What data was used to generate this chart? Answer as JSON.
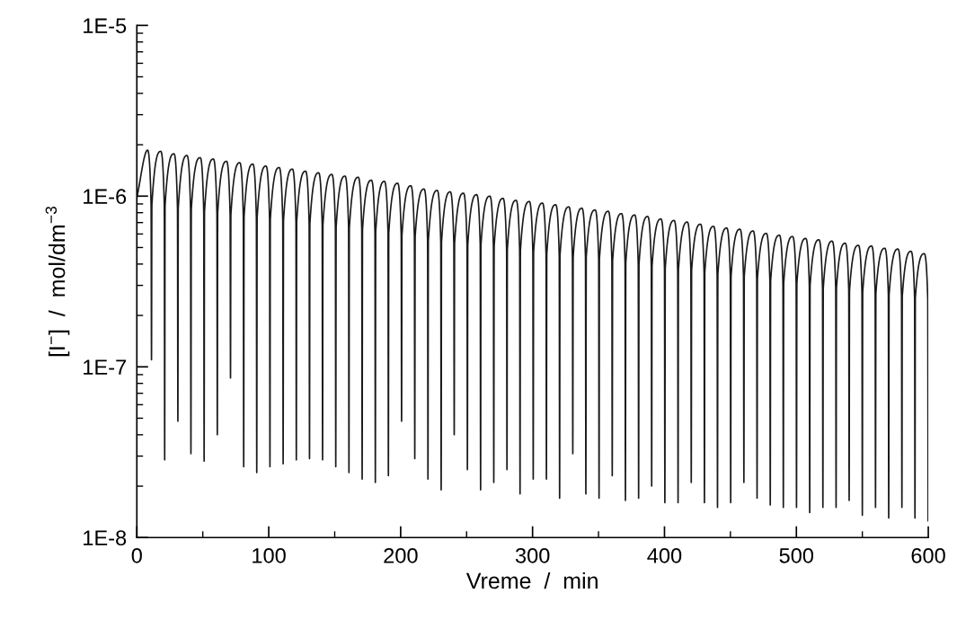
{
  "chart_data": {
    "type": "line",
    "xlabel": "Vreme  /  min",
    "ylabel": "[I$^{−}$]  /  mol/dm$^{−3}$",
    "log": "y",
    "grid": false,
    "marker": "none",
    "line_style": "solid",
    "xlim": [
      0,
      600
    ],
    "xticks": [
      0,
      100,
      200,
      300,
      400,
      500,
      600
    ],
    "ylim": [
      1e-08,
      1e-05
    ],
    "yticks": [
      {
        "value": 1e-08,
        "label": "1E-8"
      },
      {
        "value": 1e-07,
        "label": "1E-7"
      },
      {
        "value": 1e-06,
        "label": "1E-6"
      },
      {
        "value": 1e-05,
        "label": "1E-5"
      }
    ],
    "series": [
      {
        "color": "#1a1a1a",
        "x": [
          0,
          8.1,
          10.8,
          11.1,
          11.4,
          18.1,
          20.8,
          21.1,
          21.4,
          28.1,
          30.8,
          31.1,
          31.4,
          38.0,
          40.7,
          41.0,
          41.3,
          48.0,
          50.7,
          51.0,
          51.3,
          58.0,
          60.7,
          61.0,
          61.3,
          68.0,
          70.7,
          71.0,
          71.3,
          78.0,
          80.7,
          81.0,
          81.3,
          87.9,
          90.6,
          90.9,
          91.2,
          97.9,
          100.6,
          100.9,
          101.2,
          107.9,
          110.6,
          110.9,
          111.2,
          117.9,
          120.6,
          120.9,
          121.2,
          127.9,
          130.6,
          130.9,
          131.2,
          137.8,
          140.5,
          140.8,
          141.1,
          147.8,
          150.5,
          150.8,
          151.1,
          157.8,
          160.5,
          160.8,
          161.1,
          167.8,
          170.5,
          170.8,
          171.1,
          177.8,
          180.5,
          180.8,
          181.1,
          187.7,
          190.4,
          190.7,
          191.0,
          197.7,
          200.4,
          200.7,
          201.0,
          207.7,
          210.4,
          210.7,
          211.0,
          217.7,
          220.4,
          220.7,
          221.0,
          227.7,
          230.4,
          230.7,
          231.0,
          237.6,
          240.3,
          240.6,
          240.9,
          247.6,
          250.3,
          250.6,
          250.9,
          257.6,
          260.3,
          260.6,
          260.9,
          267.6,
          270.3,
          270.6,
          270.9,
          277.6,
          280.3,
          280.6,
          280.9,
          287.5,
          290.2,
          290.5,
          290.8,
          297.5,
          300.2,
          300.5,
          300.8,
          307.5,
          310.2,
          310.5,
          310.8,
          317.5,
          320.2,
          320.5,
          320.8,
          327.5,
          330.2,
          330.5,
          330.8,
          337.4,
          340.1,
          340.4,
          340.7,
          347.4,
          350.1,
          350.4,
          350.7,
          357.4,
          360.1,
          360.4,
          360.7,
          367.4,
          370.1,
          370.4,
          370.7,
          377.4,
          380.1,
          380.4,
          380.7,
          387.3,
          390.0,
          390.3,
          390.6,
          397.3,
          400.0,
          400.3,
          400.6,
          407.3,
          410.0,
          410.3,
          410.6,
          417.3,
          420.0,
          420.3,
          420.6,
          427.3,
          430.0,
          430.3,
          430.6,
          437.2,
          439.9,
          440.2,
          440.5,
          447.2,
          449.9,
          450.2,
          450.5,
          457.2,
          459.9,
          460.2,
          460.5,
          467.2,
          469.9,
          470.2,
          470.5,
          477.2,
          479.9,
          480.2,
          480.5,
          487.1,
          489.8,
          490.1,
          490.4,
          497.1,
          499.8,
          500.1,
          500.4,
          507.1,
          509.8,
          510.1,
          510.4,
          517.1,
          519.8,
          520.1,
          520.4,
          527.1,
          529.8,
          530.1,
          530.4,
          537.0,
          539.7,
          540.0,
          540.3,
          547.0,
          549.7,
          550.0,
          550.3,
          557.0,
          559.7,
          560.0,
          560.3,
          567.0,
          569.7,
          570.0,
          570.3,
          577.0,
          579.7,
          580.0,
          580.3,
          586.9,
          589.6,
          589.9,
          590.2,
          596.9,
          599.6,
          599.9,
          600
        ],
        "values": [
          9.8e-07,
          1.86e-06,
          8.9e-07,
          1.1e-07,
          8.9e-07,
          1.83e-06,
          8.8e-07,
          2.85e-08,
          8.8e-07,
          1.77e-06,
          8.5e-07,
          4.8e-08,
          8.5e-07,
          1.73e-06,
          8.4e-07,
          3.1e-08,
          8.4e-07,
          1.68e-06,
          8.1e-07,
          2.8e-08,
          8.1e-07,
          1.65e-06,
          8e-07,
          4e-08,
          8e-07,
          1.6e-06,
          7.8e-07,
          8.6e-08,
          7.8e-07,
          1.57e-06,
          7.6e-07,
          2.6e-08,
          7.6e-07,
          1.54e-06,
          7.5e-07,
          2.4e-08,
          7.5e-07,
          1.5e-06,
          7.3e-07,
          2.6e-08,
          7.3e-07,
          1.47e-06,
          7.2e-07,
          2.7e-08,
          7.2e-07,
          1.44e-06,
          7.1e-07,
          2.85e-08,
          7.1e-07,
          1.4e-06,
          6.9e-07,
          2.9e-08,
          6.9e-07,
          1.37e-06,
          6.8e-07,
          2.85e-08,
          6.8e-07,
          1.34e-06,
          6.6e-07,
          2.6e-08,
          6.6e-07,
          1.31e-06,
          6.5e-07,
          2.4e-08,
          6.5e-07,
          1.29e-06,
          6.4e-07,
          2.2e-08,
          6.4e-07,
          1.24e-06,
          6.2e-07,
          2.1e-08,
          6.2e-07,
          1.22e-06,
          6.1e-07,
          2.3e-08,
          6.1e-07,
          1.19e-06,
          5.9e-07,
          4.8e-08,
          5.9e-07,
          1.15e-06,
          5.8e-07,
          2.9e-08,
          5.8e-07,
          1.1e-06,
          5.5e-07,
          2.2e-08,
          5.5e-07,
          1.08e-06,
          5.4e-07,
          1.9e-08,
          5.4e-07,
          1.06e-06,
          5.3e-07,
          4e-08,
          5.3e-07,
          1.04e-06,
          5.2e-07,
          2.5e-08,
          5.2e-07,
          1.02e-06,
          5.2e-07,
          1.9e-08,
          5.2e-07,
          1e-06,
          5.1e-07,
          2.1e-08,
          5.1e-07,
          9.7e-07,
          4.9e-07,
          2.5e-08,
          4.9e-07,
          9.45e-07,
          4.8e-07,
          1.8e-08,
          4.8e-07,
          9.3e-07,
          4.7e-07,
          2.2e-08,
          4.7e-07,
          9.1e-07,
          4.6e-07,
          2.2e-08,
          4.6e-07,
          8.9e-07,
          4.5e-07,
          1.7e-08,
          4.5e-07,
          8.65e-07,
          4.4e-07,
          3.1e-08,
          4.4e-07,
          8.5e-07,
          4.4e-07,
          1.8e-08,
          4.4e-07,
          8.3e-07,
          4.3e-07,
          1.7e-08,
          4.3e-07,
          8.15e-07,
          4.2e-07,
          2.3e-08,
          4.2e-07,
          7.9e-07,
          4.1e-07,
          1.65e-08,
          4.1e-07,
          7.75e-07,
          4e-07,
          1.7e-08,
          4e-07,
          7.6e-07,
          3.9e-07,
          2e-08,
          3.9e-07,
          7.35e-07,
          3.8e-07,
          1.6e-08,
          3.8e-07,
          7.2e-07,
          3.7e-07,
          1.6e-08,
          3.7e-07,
          7.05e-07,
          3.7e-07,
          2.1e-08,
          3.7e-07,
          6.85e-07,
          3.6e-07,
          1.6e-08,
          3.6e-07,
          6.65e-07,
          3.5e-07,
          1.5e-08,
          3.5e-07,
          6.5e-07,
          3.4e-07,
          1.6e-08,
          3.4e-07,
          6.4e-07,
          3.4e-07,
          2.1e-08,
          3.4e-07,
          6.25e-07,
          3.3e-07,
          1.7e-08,
          3.3e-07,
          6.05e-07,
          3.2e-07,
          1.55e-08,
          3.2e-07,
          5.9e-07,
          3.1e-07,
          1.5e-08,
          3.1e-07,
          5.8e-07,
          3.1e-07,
          1.5e-08,
          3.1e-07,
          5.65e-07,
          3e-07,
          1.4e-08,
          3e-07,
          5.55e-07,
          2.9e-07,
          1.5e-08,
          2.9e-07,
          5.45e-07,
          2.9e-07,
          1.5e-08,
          2.9e-07,
          5.3e-07,
          2.8e-07,
          1.65e-08,
          2.8e-07,
          5.15e-07,
          2.75e-07,
          1.35e-08,
          2.75e-07,
          5.1e-07,
          2.7e-07,
          1.5e-08,
          2.7e-07,
          4.95e-07,
          2.65e-07,
          1.3e-08,
          2.65e-07,
          4.9e-07,
          2.6e-07,
          1.5e-08,
          2.6e-07,
          4.75e-07,
          2.55e-07,
          1.3e-08,
          2.55e-07,
          4.6e-07,
          2.5e-07,
          1.25e-08,
          2.2e-07
        ]
      }
    ]
  }
}
